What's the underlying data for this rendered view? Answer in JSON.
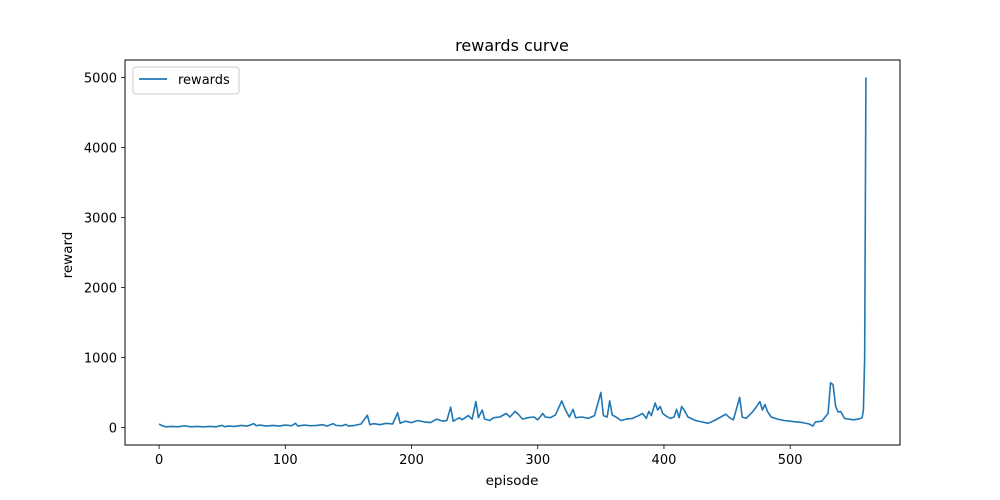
{
  "chart_data": {
    "type": "line",
    "title": "rewards curve",
    "xlabel": "episode",
    "ylabel": "reward",
    "xlim": [
      -27,
      587
    ],
    "ylim": [
      -250,
      5250
    ],
    "x_ticks": [
      0,
      100,
      200,
      300,
      400,
      500
    ],
    "y_ticks": [
      0,
      1000,
      2000,
      3000,
      4000,
      5000
    ],
    "grid": false,
    "legend_position": "upper-left",
    "series": [
      {
        "name": "rewards",
        "color": "#1f77b4",
        "keypoints": [
          [
            0,
            50
          ],
          [
            2,
            30
          ],
          [
            5,
            10
          ],
          [
            10,
            15
          ],
          [
            15,
            10
          ],
          [
            20,
            25
          ],
          [
            25,
            10
          ],
          [
            30,
            15
          ],
          [
            35,
            10
          ],
          [
            40,
            15
          ],
          [
            45,
            10
          ],
          [
            50,
            30
          ],
          [
            52,
            12
          ],
          [
            55,
            20
          ],
          [
            60,
            15
          ],
          [
            65,
            30
          ],
          [
            70,
            20
          ],
          [
            75,
            55
          ],
          [
            77,
            25
          ],
          [
            80,
            35
          ],
          [
            85,
            20
          ],
          [
            90,
            30
          ],
          [
            95,
            20
          ],
          [
            100,
            35
          ],
          [
            105,
            25
          ],
          [
            108,
            60
          ],
          [
            110,
            20
          ],
          [
            115,
            35
          ],
          [
            120,
            25
          ],
          [
            125,
            30
          ],
          [
            130,
            40
          ],
          [
            133,
            20
          ],
          [
            138,
            55
          ],
          [
            140,
            30
          ],
          [
            145,
            25
          ],
          [
            148,
            45
          ],
          [
            150,
            20
          ],
          [
            155,
            30
          ],
          [
            160,
            50
          ],
          [
            165,
            175
          ],
          [
            167,
            40
          ],
          [
            170,
            55
          ],
          [
            175,
            40
          ],
          [
            180,
            60
          ],
          [
            185,
            50
          ],
          [
            189,
            210
          ],
          [
            191,
            60
          ],
          [
            195,
            90
          ],
          [
            200,
            70
          ],
          [
            205,
            100
          ],
          [
            210,
            80
          ],
          [
            215,
            70
          ],
          [
            220,
            120
          ],
          [
            225,
            90
          ],
          [
            228,
            100
          ],
          [
            231,
            290
          ],
          [
            233,
            90
          ],
          [
            238,
            140
          ],
          [
            240,
            110
          ],
          [
            245,
            170
          ],
          [
            248,
            120
          ],
          [
            251,
            370
          ],
          [
            253,
            140
          ],
          [
            256,
            250
          ],
          [
            258,
            120
          ],
          [
            262,
            100
          ],
          [
            265,
            140
          ],
          [
            270,
            150
          ],
          [
            275,
            200
          ],
          [
            278,
            150
          ],
          [
            282,
            230
          ],
          [
            285,
            180
          ],
          [
            288,
            120
          ],
          [
            292,
            140
          ],
          [
            297,
            150
          ],
          [
            300,
            110
          ],
          [
            304,
            200
          ],
          [
            306,
            150
          ],
          [
            310,
            140
          ],
          [
            314,
            180
          ],
          [
            319,
            380
          ],
          [
            322,
            250
          ],
          [
            325,
            150
          ],
          [
            328,
            260
          ],
          [
            330,
            140
          ],
          [
            335,
            150
          ],
          [
            340,
            130
          ],
          [
            345,
            170
          ],
          [
            350,
            500
          ],
          [
            352,
            170
          ],
          [
            355,
            150
          ],
          [
            357,
            380
          ],
          [
            359,
            180
          ],
          [
            362,
            150
          ],
          [
            366,
            100
          ],
          [
            370,
            120
          ],
          [
            375,
            130
          ],
          [
            380,
            170
          ],
          [
            383,
            200
          ],
          [
            386,
            130
          ],
          [
            388,
            230
          ],
          [
            390,
            170
          ],
          [
            393,
            350
          ],
          [
            395,
            250
          ],
          [
            397,
            300
          ],
          [
            399,
            200
          ],
          [
            402,
            160
          ],
          [
            405,
            130
          ],
          [
            408,
            150
          ],
          [
            410,
            260
          ],
          [
            412,
            140
          ],
          [
            414,
            300
          ],
          [
            416,
            250
          ],
          [
            419,
            150
          ],
          [
            425,
            100
          ],
          [
            430,
            80
          ],
          [
            435,
            60
          ],
          [
            440,
            100
          ],
          [
            445,
            150
          ],
          [
            449,
            190
          ],
          [
            452,
            140
          ],
          [
            455,
            110
          ],
          [
            460,
            430
          ],
          [
            462,
            150
          ],
          [
            465,
            130
          ],
          [
            470,
            220
          ],
          [
            473,
            290
          ],
          [
            476,
            370
          ],
          [
            478,
            250
          ],
          [
            480,
            330
          ],
          [
            482,
            230
          ],
          [
            485,
            150
          ],
          [
            490,
            120
          ],
          [
            495,
            100
          ],
          [
            500,
            90
          ],
          [
            505,
            80
          ],
          [
            510,
            70
          ],
          [
            515,
            50
          ],
          [
            518,
            20
          ],
          [
            520,
            80
          ],
          [
            525,
            90
          ],
          [
            530,
            200
          ],
          [
            532,
            640
          ],
          [
            534,
            610
          ],
          [
            536,
            300
          ],
          [
            538,
            220
          ],
          [
            540,
            230
          ],
          [
            543,
            130
          ],
          [
            546,
            120
          ],
          [
            550,
            110
          ],
          [
            554,
            120
          ],
          [
            557,
            140
          ],
          [
            558,
            250
          ],
          [
            559,
            1000
          ],
          [
            560,
            5000
          ]
        ]
      }
    ]
  }
}
